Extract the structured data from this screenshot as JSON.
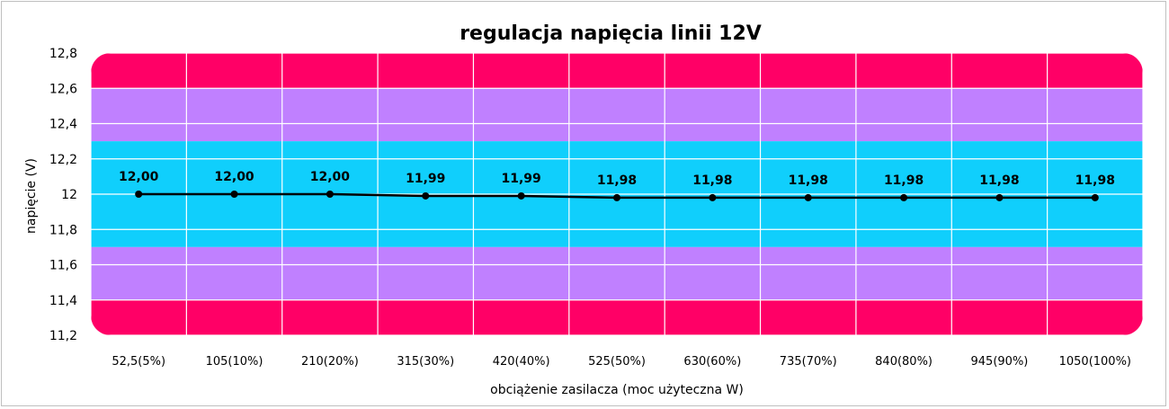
{
  "chart_data": {
    "type": "line",
    "title": "regulacja napięcia linii 12V",
    "xlabel": "obciążenie zasilacza (moc użyteczna W)",
    "ylabel": "napięcie (V)",
    "categories": [
      "52,5(5%)",
      "105(10%)",
      "210(20%)",
      "315(30%)",
      "420(40%)",
      "525(50%)",
      "630(60%)",
      "735(70%)",
      "840(80%)",
      "945(90%)",
      "1050(100%)"
    ],
    "series": [
      {
        "values": [
          12.0,
          12.0,
          12.0,
          11.99,
          11.99,
          11.98,
          11.98,
          11.98,
          11.98,
          11.98,
          11.98
        ],
        "labels": [
          "12,00",
          "12,00",
          "12,00",
          "11,99",
          "11,99",
          "11,98",
          "11,98",
          "11,98",
          "11,98",
          "11,98",
          "11,98"
        ],
        "color": "#000000"
      }
    ],
    "ylim": [
      11.2,
      12.8
    ],
    "yticks": [
      12.8,
      12.6,
      12.4,
      12.2,
      12,
      11.8,
      11.6,
      11.4,
      11.2
    ],
    "ytick_labels": [
      "12,8",
      "12,6",
      "12,4",
      "12,2",
      "12",
      "11,8",
      "11,6",
      "11,4",
      "11,2"
    ],
    "grid": true,
    "bands": [
      {
        "from": 12.6,
        "to": 12.8,
        "color": "#ff0066"
      },
      {
        "from": 12.3,
        "to": 12.6,
        "color": "#c080ff"
      },
      {
        "from": 11.7,
        "to": 12.3,
        "color": "#10cffc"
      },
      {
        "from": 11.4,
        "to": 11.7,
        "color": "#c080ff"
      },
      {
        "from": 11.2,
        "to": 11.4,
        "color": "#ff0066"
      }
    ]
  }
}
